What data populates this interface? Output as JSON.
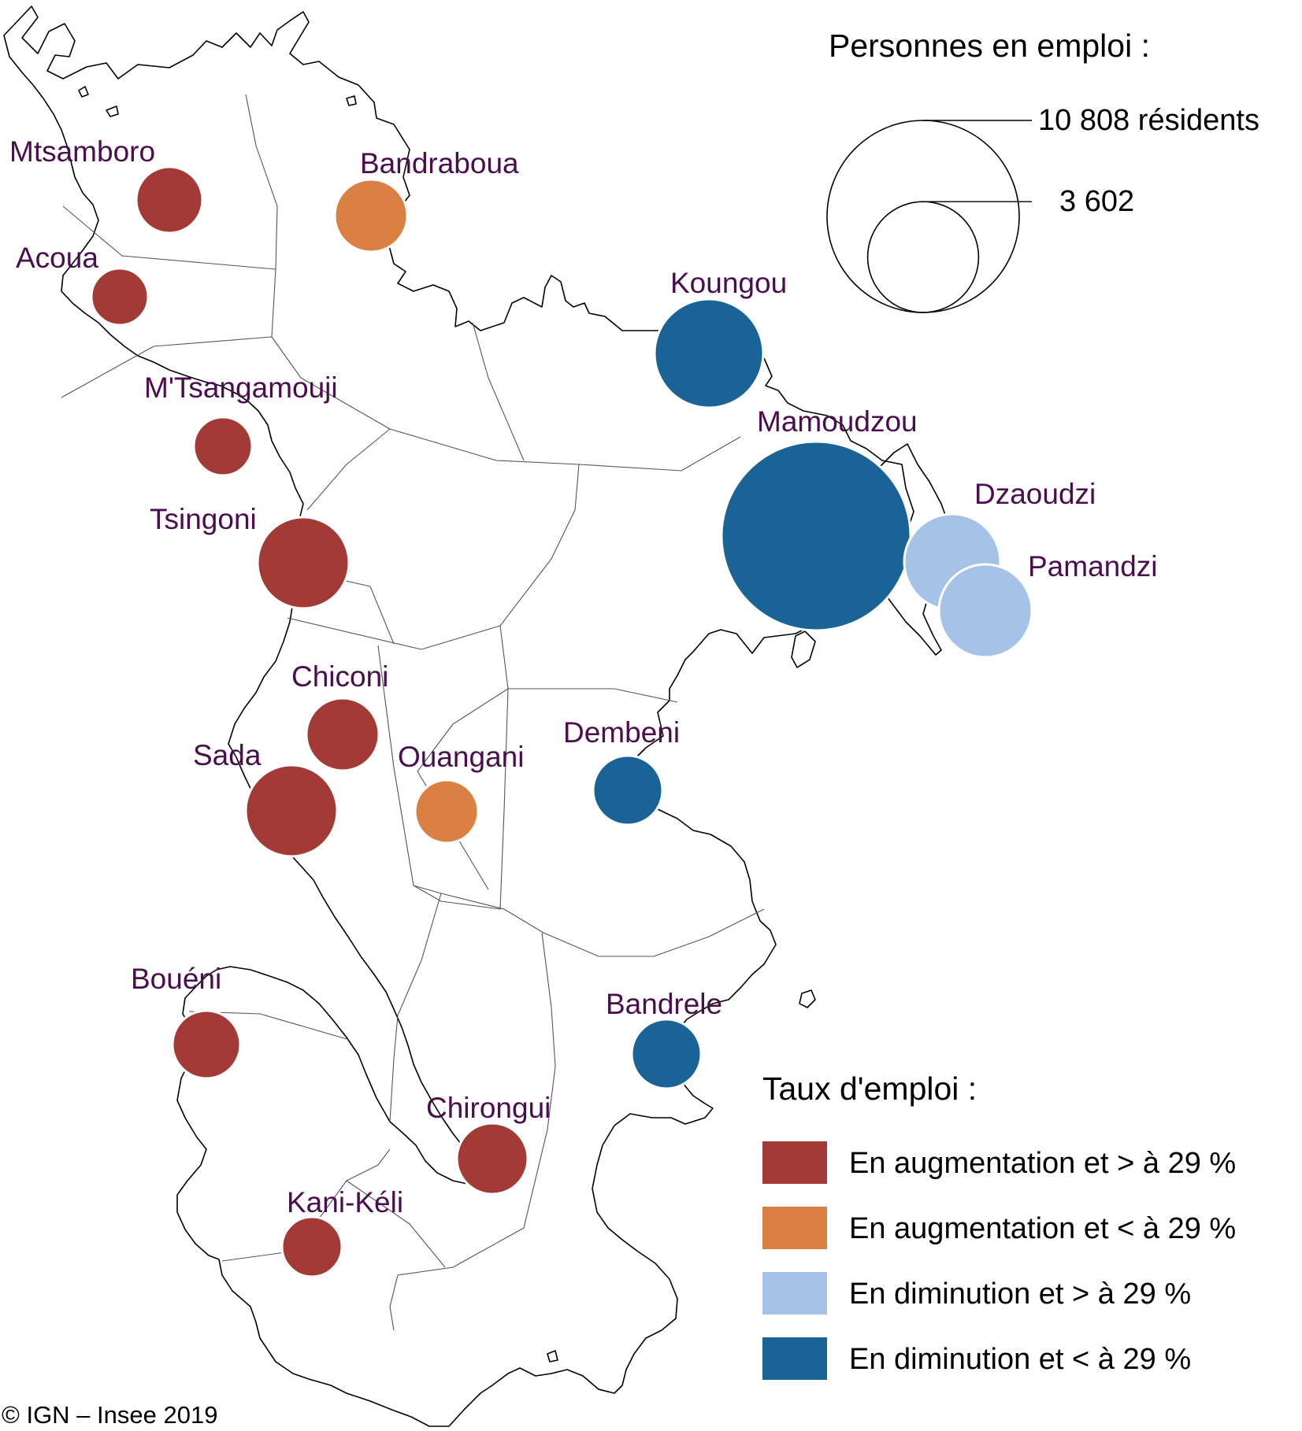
{
  "legend_size": {
    "title": "Personnes en emploi :",
    "large": {
      "value": 10808,
      "label": "10 808 résidents"
    },
    "small": {
      "value": 3602,
      "label": "3 602"
    }
  },
  "legend_color": {
    "title": "Taux d'emploi :",
    "classes": [
      {
        "key": "aug_high",
        "label": "En augmentation et > à 29 %",
        "color": "#a33a35"
      },
      {
        "key": "aug_low",
        "label": "En augmentation et < à 29 %",
        "color": "#d98042"
      },
      {
        "key": "dim_high",
        "label": "En diminution et > à 29 %",
        "color": "#a5c3e6"
      },
      {
        "key": "dim_low",
        "label": "En diminution et < à 29 %",
        "color": "#1a6397"
      }
    ]
  },
  "communes": [
    {
      "name": "Mtsamboro",
      "class": "aug_high"
    },
    {
      "name": "Bandraboua",
      "class": "aug_low"
    },
    {
      "name": "Acoua",
      "class": "aug_high"
    },
    {
      "name": "Koungou",
      "class": "dim_low"
    },
    {
      "name": "M'Tsangamouji",
      "class": "aug_high"
    },
    {
      "name": "Mamoudzou",
      "class": "dim_low"
    },
    {
      "name": "Tsingoni",
      "class": "aug_high"
    },
    {
      "name": "Dzaoudzi",
      "class": "dim_high"
    },
    {
      "name": "Pamandzi",
      "class": "dim_high"
    },
    {
      "name": "Chiconi",
      "class": "aug_high"
    },
    {
      "name": "Sada",
      "class": "aug_high"
    },
    {
      "name": "Ouangani",
      "class": "aug_low"
    },
    {
      "name": "Dembeni",
      "class": "dim_low"
    },
    {
      "name": "Bandrele",
      "class": "dim_low"
    },
    {
      "name": "Bouéni",
      "class": "aug_high"
    },
    {
      "name": "Chirongui",
      "class": "aug_high"
    },
    {
      "name": "Kani-Kéli",
      "class": "aug_high"
    }
  ],
  "credit": "© IGN – Insee 2019"
}
